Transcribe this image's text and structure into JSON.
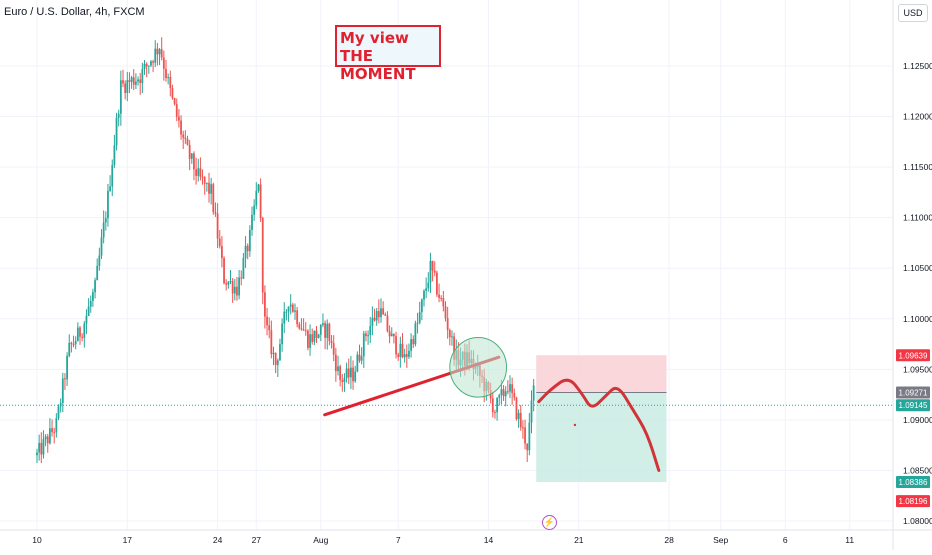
{
  "header": {
    "symbol_title": "Euro / U.S. Dollar, 4h, FXCM",
    "currency_label": "USD"
  },
  "annotation": {
    "text_line1": "My view THE",
    "text_line2": "MOMENT"
  },
  "colors": {
    "up": "#26a69a",
    "down": "#ef5350",
    "trendline": "#e02230",
    "stop_zone": "#f8d0d3",
    "target_zone": "#c9ebe3",
    "circle_fill": "#bfe6d2",
    "current_price": "#26a69a"
  },
  "chart_data": {
    "type": "candlestick",
    "title": "Euro / U.S. Dollar, 4h, FXCM",
    "ylim": [
      1.0775,
      1.1303
    ],
    "y_ticks": [
      "1.12500",
      "1.12000",
      "1.11500",
      "1.11000",
      "1.10500",
      "1.10000",
      "1.09500",
      "1.09000",
      "1.08500",
      "1.08000"
    ],
    "y_tick_values": [
      1.125,
      1.12,
      1.115,
      1.11,
      1.105,
      1.1,
      1.095,
      1.09,
      1.085,
      1.08
    ],
    "x_ticks": [
      "10",
      "17",
      "24",
      "27",
      "Aug",
      "7",
      "14",
      "21",
      "28",
      "Sep",
      "6",
      "11"
    ],
    "x_tick_days": [
      0,
      7,
      14,
      17,
      22,
      28,
      35,
      42,
      49,
      53,
      58,
      63
    ],
    "x_axis_start": "Jul 10",
    "price_labels": [
      {
        "label": "1.09639",
        "value": 1.09639,
        "kind": "stop"
      },
      {
        "label": "1.09271",
        "value": 1.09271,
        "kind": "entry"
      },
      {
        "label": "1.09145",
        "value": 1.09145,
        "kind": "current"
      },
      {
        "label": "1.08386",
        "value": 1.08386,
        "kind": "target"
      },
      {
        "label": "1.08196",
        "value": 1.08196,
        "kind": "low"
      }
    ],
    "path_waypoints": [
      [
        0.0,
        1.0865
      ],
      [
        1.5,
        1.0895
      ],
      [
        2.5,
        1.097
      ],
      [
        3.5,
        1.099
      ],
      [
        4.5,
        1.103
      ],
      [
        5.5,
        1.112
      ],
      [
        6.5,
        1.123
      ],
      [
        8.0,
        1.124
      ],
      [
        9.5,
        1.127
      ],
      [
        10.5,
        1.1215
      ],
      [
        11.5,
        1.117
      ],
      [
        12.5,
        1.114
      ],
      [
        13.5,
        1.1125
      ],
      [
        14.5,
        1.104
      ],
      [
        15.5,
        1.103
      ],
      [
        16.5,
        1.108
      ],
      [
        17.2,
        1.114
      ],
      [
        17.6,
        1.1
      ],
      [
        18.5,
        1.0955
      ],
      [
        19.5,
        1.102
      ],
      [
        21.0,
        1.098
      ],
      [
        22.5,
        1.099
      ],
      [
        23.5,
        1.094
      ],
      [
        24.5,
        1.0945
      ],
      [
        25.5,
        1.0985
      ],
      [
        26.5,
        1.101
      ],
      [
        27.5,
        1.098
      ],
      [
        28.5,
        1.096
      ],
      [
        29.5,
        1.0995
      ],
      [
        30.5,
        1.105
      ],
      [
        31.5,
        1.101
      ],
      [
        32.5,
        1.096
      ],
      [
        33.5,
        1.096
      ],
      [
        34.5,
        1.094
      ],
      [
        35.5,
        1.091
      ],
      [
        36.5,
        1.0935
      ],
      [
        37.5,
        1.0895
      ],
      [
        38.0,
        1.0875
      ],
      [
        38.5,
        1.093
      ]
    ],
    "trendline": {
      "start": [
        22.3,
        1.0905
      ],
      "end": [
        35.8,
        1.0962
      ]
    },
    "circle": {
      "center": [
        34.2,
        1.0952
      ],
      "radius_days": 2.2
    },
    "position": {
      "start_day": 38.7,
      "end_day": 48.8,
      "entry": 1.09271,
      "stop": 1.09639,
      "target": 1.08386
    },
    "projection": [
      [
        38.9,
        1.0918
      ],
      [
        39.8,
        1.093
      ],
      [
        41.2,
        1.0943
      ],
      [
        42.3,
        1.0925
      ],
      [
        43.0,
        1.091
      ],
      [
        44.1,
        1.0924
      ],
      [
        45.0,
        1.0935
      ],
      [
        46.2,
        1.091
      ],
      [
        47.3,
        1.0887
      ],
      [
        48.2,
        1.085
      ]
    ],
    "current_price": 1.09145
  }
}
